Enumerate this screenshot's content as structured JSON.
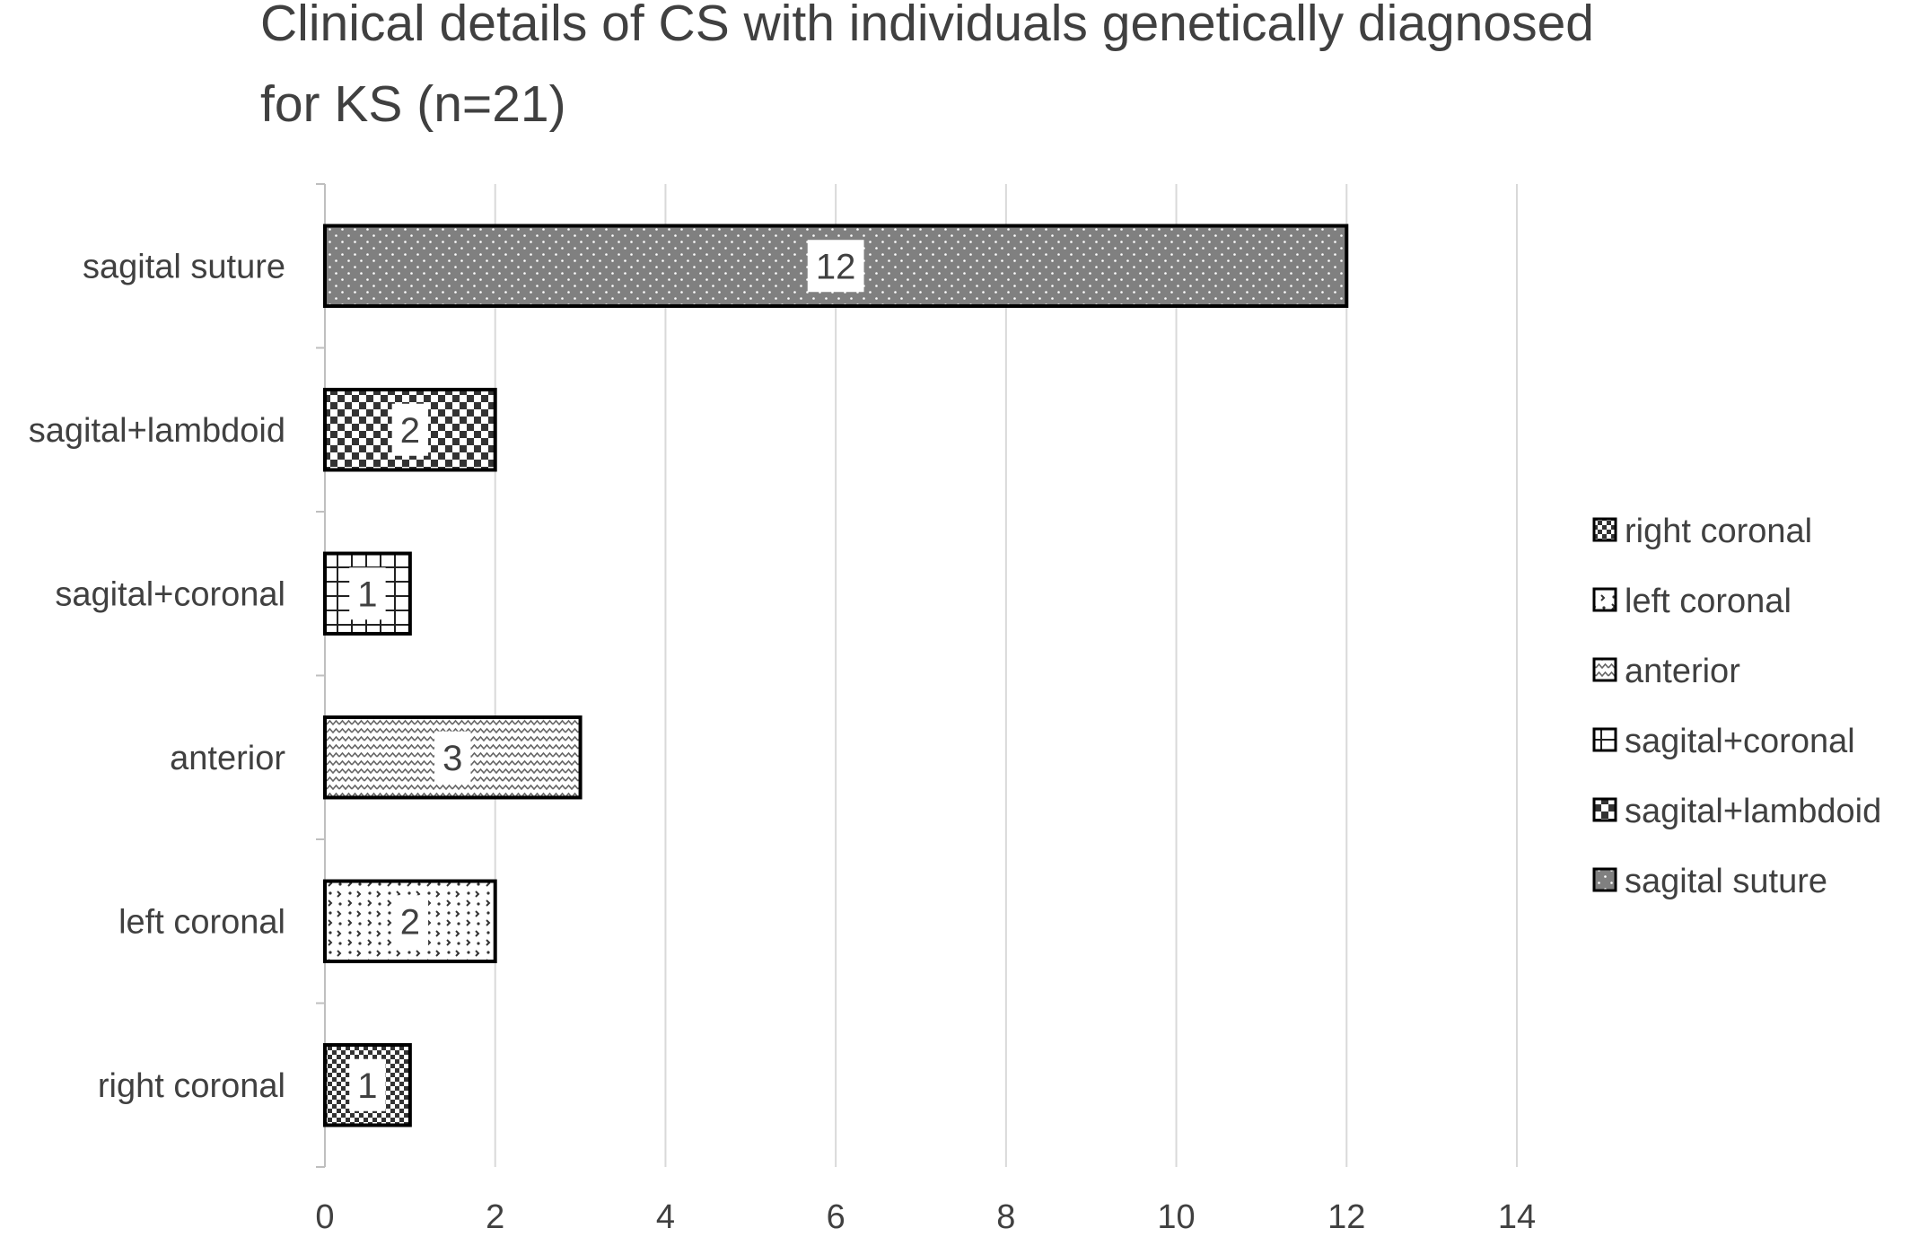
{
  "chart_data": {
    "type": "bar",
    "orientation": "horizontal",
    "title": "Clinical details of CS with individuals genetically diagnosed for KS   (n=21)",
    "title_lines": [
      "Clinical details of CS with individuals genetically diagnosed",
      "for KS   (n=21)"
    ],
    "xlabel": "",
    "ylabel": "",
    "categories": [
      "right coronal",
      "left coronal",
      "anterior",
      "sagital+coronal",
      "sagital+lambdoid",
      "sagital suture"
    ],
    "values": [
      1,
      2,
      3,
      1,
      2,
      12
    ],
    "data_labels": [
      "1",
      "2",
      "3",
      "1",
      "2",
      "12"
    ],
    "xlim": [
      0,
      14
    ],
    "x_ticks": [
      0,
      2,
      4,
      6,
      8,
      10,
      12,
      14
    ],
    "grid": "vertical",
    "legend": {
      "position": "right",
      "entries": [
        "right coronal",
        "left coronal",
        "anterior",
        "sagital+coronal",
        "sagital+lambdoid",
        "sagital suture"
      ]
    },
    "patterns": [
      "checker-small",
      "scattered-marks",
      "zigzag",
      "grid",
      "checker-large",
      "dots-on-gray"
    ],
    "colors": {
      "bar_outline": "#000000",
      "gridline": "#d9d9d9",
      "axis": "#bfbfbf",
      "text": "#404040",
      "solid_fill": "#808080"
    }
  }
}
